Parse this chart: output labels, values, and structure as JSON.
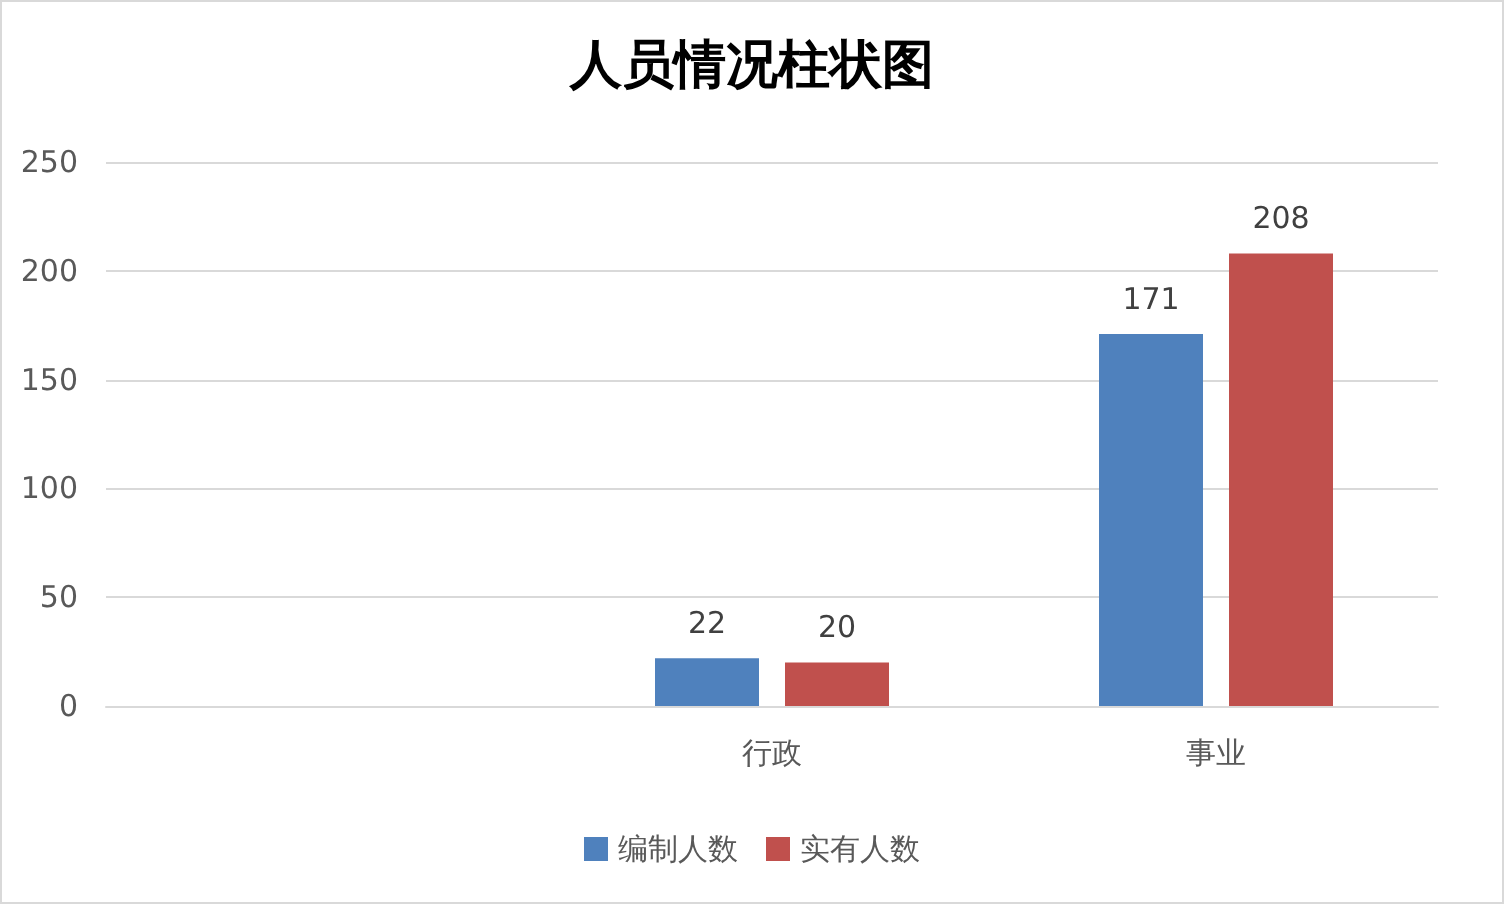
{
  "chart_data": {
    "type": "bar",
    "title": "人员情况柱状图",
    "categories": [
      null,
      "行政",
      "事业"
    ],
    "series": [
      {
        "name": "编制人数",
        "color": "#4f81bd",
        "values": [
          null,
          22,
          171
        ]
      },
      {
        "name": "实有人数",
        "color": "#c0504d",
        "values": [
          null,
          20,
          208
        ]
      }
    ],
    "ylim": [
      0,
      250
    ],
    "yticks": [
      0,
      50,
      100,
      150,
      200,
      250
    ],
    "grid": "y",
    "legend": "bottom",
    "data_labels": true
  }
}
